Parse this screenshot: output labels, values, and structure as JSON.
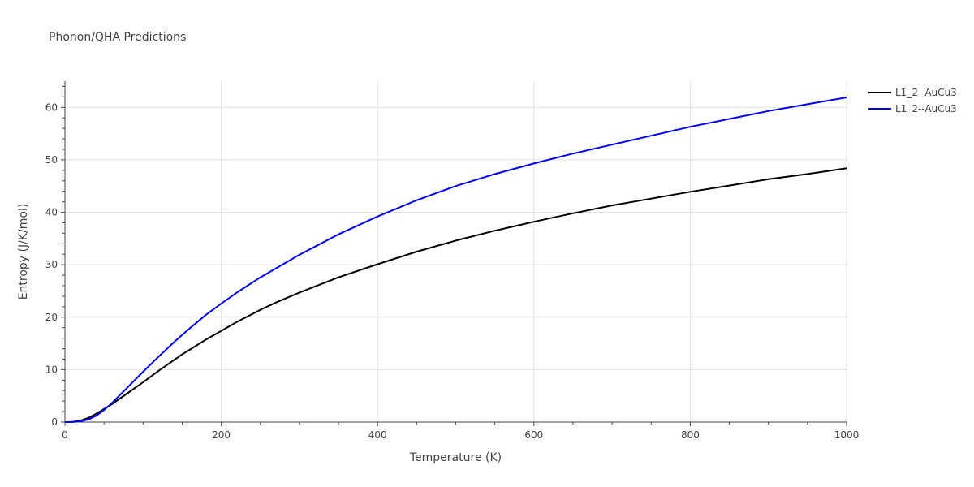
{
  "chart_data": {
    "type": "line",
    "title": "Phonon/QHA Predictions",
    "xlabel": "Temperature (K)",
    "ylabel": "Entropy (J/K/mol)",
    "xlim": [
      0,
      1000
    ],
    "ylim": [
      0,
      65
    ],
    "x_ticks": [
      0,
      200,
      400,
      600,
      800,
      1000
    ],
    "y_ticks": [
      0,
      10,
      20,
      30,
      40,
      50,
      60
    ],
    "grid": true,
    "legend_position": "top-right",
    "series": [
      {
        "name": "L1_2--AuCu3",
        "color": "#000000",
        "x": [
          0,
          10,
          20,
          30,
          40,
          50,
          60,
          80,
          100,
          120,
          150,
          180,
          200,
          220,
          250,
          270,
          300,
          350,
          400,
          450,
          500,
          550,
          600,
          650,
          700,
          750,
          800,
          850,
          900,
          950,
          1000
        ],
        "y": [
          0,
          0.05,
          0.3,
          0.8,
          1.6,
          2.5,
          3.4,
          5.5,
          7.6,
          9.8,
          12.9,
          15.7,
          17.4,
          19.1,
          21.4,
          22.8,
          24.7,
          27.6,
          30.1,
          32.5,
          34.6,
          36.5,
          38.2,
          39.8,
          41.3,
          42.6,
          43.9,
          45.1,
          46.3,
          47.3,
          48.4
        ]
      },
      {
        "name": "L1_2--AuCu3",
        "color": "#0000ee",
        "x": [
          0,
          10,
          20,
          30,
          40,
          50,
          60,
          80,
          100,
          120,
          140,
          160,
          180,
          200,
          220,
          250,
          300,
          350,
          400,
          450,
          500,
          550,
          600,
          650,
          700,
          750,
          800,
          850,
          900,
          950,
          1000
        ],
        "y": [
          0,
          0.02,
          0.15,
          0.5,
          1.2,
          2.3,
          3.6,
          6.6,
          9.6,
          12.5,
          15.3,
          17.9,
          20.4,
          22.6,
          24.7,
          27.6,
          31.9,
          35.8,
          39.2,
          42.3,
          45.0,
          47.3,
          49.3,
          51.2,
          52.9,
          54.6,
          56.3,
          57.8,
          59.3,
          60.6,
          61.9
        ]
      }
    ]
  }
}
